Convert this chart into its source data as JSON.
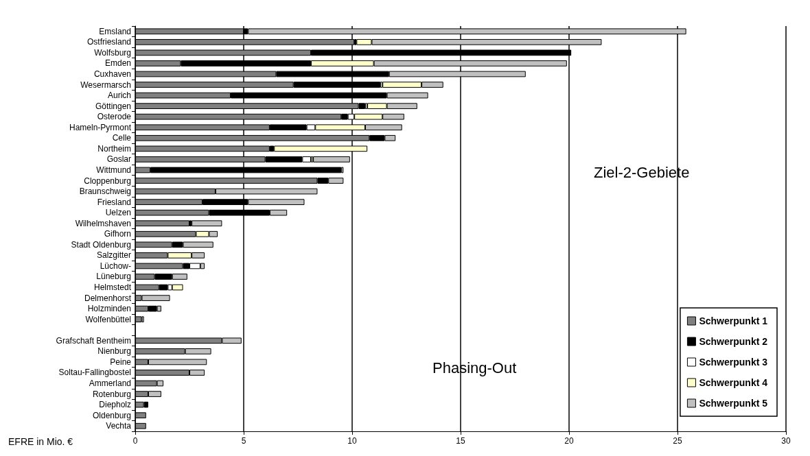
{
  "chart_data": {
    "type": "bar",
    "orientation": "horizontal",
    "stacked": true,
    "xlabel": "EFRE in Mio. €",
    "categories": [
      "Emsland",
      "Ostfriesland",
      "Wolfsburg",
      "Emden",
      "Cuxhaven",
      "Wesermarsch",
      "Aurich",
      "Göttingen",
      "Osterode",
      "Hameln-Pyrmont",
      "Celle",
      "Northeim",
      "Goslar",
      "Wittmund",
      "Cloppenburg",
      "Braunschweig",
      "Friesland",
      "Uelzen",
      "Wilhelmshaven",
      "Gifhorn",
      "Stadt Oldenburg",
      "Salzgitter",
      "Lüchow-",
      "Lüneburg",
      "Helmstedt",
      "Delmenhorst",
      "Holzminden",
      "Wolfenbüttel",
      null,
      "Grafschaft Bentheim",
      "Nienburg",
      "Peine",
      "Soltau-Fallingbostel",
      "Ammerland",
      "Rotenburg",
      "Diepholz",
      "Oldenburg",
      "Vechta"
    ],
    "series": [
      {
        "name": "Schwerpunkt 1",
        "color": "#808080",
        "values": [
          5.0,
          10.1,
          8.1,
          2.1,
          6.5,
          7.3,
          4.4,
          10.3,
          9.5,
          6.2,
          10.8,
          6.2,
          6.0,
          0.7,
          8.4,
          3.7,
          3.1,
          3.4,
          2.5,
          2.8,
          1.7,
          1.5,
          2.2,
          0.9,
          1.1,
          0.3,
          0.6,
          0.3,
          null,
          4.0,
          2.3,
          0.6,
          2.5,
          1.0,
          0.6,
          0.4,
          0.5,
          0.5
        ]
      },
      {
        "name": "Schwerpunkt 2",
        "color": "#000000",
        "values": [
          0.2,
          0.1,
          12.0,
          6.0,
          5.2,
          4.0,
          7.2,
          0.3,
          0.3,
          1.7,
          0.7,
          0.2,
          1.7,
          8.8,
          0.5,
          null,
          2.1,
          2.8,
          0.1,
          null,
          0.5,
          null,
          0.3,
          0.8,
          0.4,
          null,
          0.4,
          null,
          null,
          null,
          null,
          null,
          null,
          null,
          null,
          0.2,
          null,
          null
        ]
      },
      {
        "name": "Schwerpunkt 3",
        "color": "#ffffff",
        "values": [
          null,
          null,
          null,
          null,
          null,
          0.1,
          null,
          0.1,
          0.3,
          0.4,
          null,
          null,
          0.4,
          null,
          null,
          null,
          null,
          null,
          null,
          null,
          null,
          null,
          0.5,
          null,
          0.2,
          null,
          null,
          null,
          null,
          null,
          null,
          null,
          null,
          null,
          null,
          null,
          null,
          null
        ]
      },
      {
        "name": "Schwerpunkt 4",
        "color": "#ffffcc",
        "values": [
          null,
          0.7,
          null,
          2.9,
          null,
          1.8,
          null,
          0.9,
          1.3,
          2.3,
          null,
          4.3,
          0.1,
          null,
          null,
          null,
          null,
          null,
          null,
          0.6,
          null,
          1.1,
          null,
          null,
          0.5,
          null,
          null,
          null,
          null,
          null,
          null,
          null,
          null,
          null,
          null,
          null,
          null,
          null
        ]
      },
      {
        "name": "Schwerpunkt 5",
        "color": "#c0c0c0",
        "values": [
          20.2,
          10.6,
          null,
          8.9,
          6.3,
          1.0,
          1.9,
          1.4,
          1.0,
          1.7,
          0.5,
          null,
          1.7,
          0.1,
          0.7,
          4.7,
          2.6,
          0.8,
          1.4,
          0.4,
          1.4,
          0.6,
          0.2,
          0.7,
          null,
          1.3,
          0.2,
          0.1,
          null,
          0.9,
          1.2,
          2.7,
          0.7,
          0.3,
          0.6,
          null,
          null,
          null
        ]
      }
    ],
    "xlim": [
      0,
      30
    ],
    "xticks": [
      0,
      5,
      10,
      15,
      20,
      25,
      30
    ],
    "grid": "x",
    "legend": "bottom right",
    "annotations": [
      "Ziel-2-Gebiete",
      "Phasing-Out"
    ]
  }
}
